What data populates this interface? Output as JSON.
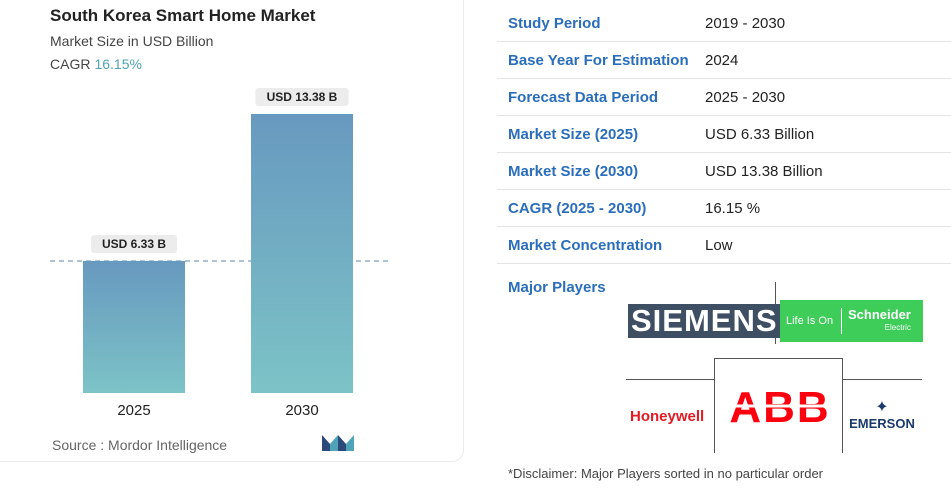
{
  "chart_data": {
    "type": "bar",
    "title": "South Korea Smart Home Market",
    "subtitle": "Market Size in USD Billion",
    "cagr_label": "CAGR",
    "cagr_value": "16.15%",
    "categories": [
      "2025",
      "2030"
    ],
    "values": [
      6.33,
      13.38
    ],
    "data_labels": [
      "USD 6.33 B",
      "USD 13.38 B"
    ],
    "ylim": [
      0,
      13.38
    ],
    "colors": {
      "bar_top": "#6899c0",
      "bar_bottom": "#7cc3c6",
      "cagr": "#4ea3b8"
    },
    "reference_line": "dashed at 2025 value"
  },
  "source": "Source :  Mordor Intelligence",
  "table": [
    {
      "key": "Study Period",
      "value": "2019 - 2030"
    },
    {
      "key": "Base Year For Estimation",
      "value": "2024"
    },
    {
      "key": "Forecast Data Period",
      "value": "2025 - 2030"
    },
    {
      "key": "Market Size (2025)",
      "value": "USD 6.33 Billion"
    },
    {
      "key": "Market Size (2030)",
      "value": "USD 13.38 Billion"
    },
    {
      "key": "CAGR (2025 - 2030)",
      "value": "16.15 %"
    },
    {
      "key": "Market Concentration",
      "value": "Low"
    }
  ],
  "major_players_label": "Major Players",
  "logos": {
    "siemens": "SIEMENS",
    "schneider_tagline": "Life Is On",
    "schneider_name": "Schneider",
    "schneider_sub": "Electric",
    "honeywell": "Honeywell",
    "abb": "ABB",
    "emerson": "EMERSON"
  },
  "disclaimer": "*Disclaimer: Major Players sorted in no particular order"
}
